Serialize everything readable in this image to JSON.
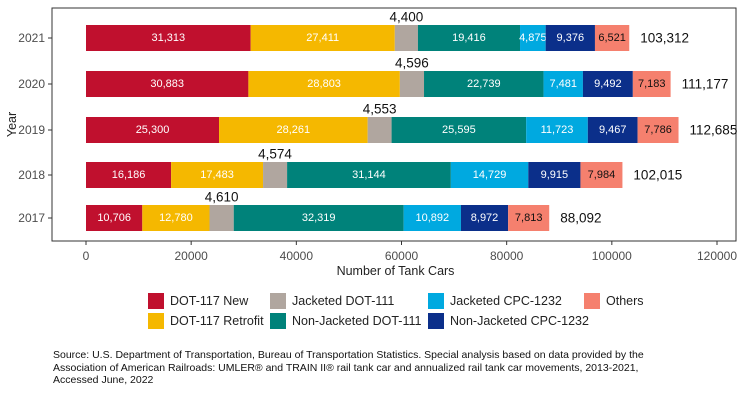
{
  "chart_data": {
    "type": "bar",
    "orientation": "horizontal",
    "stacked": true,
    "xlabel": "Number of Tank Cars",
    "ylabel": "Year",
    "xlim": [
      0,
      120000
    ],
    "x_ticks": [
      "0",
      "20000",
      "40000",
      "60000",
      "80000",
      "100000",
      "120000"
    ],
    "grid": false,
    "legend_position": "bottom",
    "categories": [
      "2021",
      "2020",
      "2019",
      "2018",
      "2017"
    ],
    "series": [
      {
        "name": "DOT-117 New",
        "color": "#c0102e",
        "values": [
          31313,
          30883,
          25300,
          16186,
          10706
        ],
        "labels": [
          "31,313",
          "30,883",
          "25,300",
          "16,186",
          "10,706"
        ]
      },
      {
        "name": "DOT-117 Retrofit",
        "color": "#f5b800",
        "values": [
          27411,
          28803,
          28261,
          17483,
          12780
        ],
        "labels": [
          "27,411",
          "28,803",
          "28,261",
          "17,483",
          "12,780"
        ]
      },
      {
        "name": "Jacketed DOT-111",
        "color": "#b0a69f",
        "values": [
          4400,
          4596,
          4553,
          4574,
          4610
        ],
        "labels": [
          "4,400",
          "4,596",
          "4,553",
          "4,574",
          "4,610"
        ]
      },
      {
        "name": "Non-Jacketed DOT-111",
        "color": "#00827a",
        "values": [
          19416,
          22739,
          25595,
          31144,
          32319
        ],
        "labels": [
          "19,416",
          "22,739",
          "25,595",
          "31,144",
          "32,319"
        ]
      },
      {
        "name": "Jacketed CPC-1232",
        "color": "#00a9e0",
        "values": [
          4875,
          7481,
          11723,
          14729,
          10892
        ],
        "labels": [
          "4,875",
          "7,481",
          "11,723",
          "14,729",
          "10,892"
        ]
      },
      {
        "name": "Non-Jacketed CPC-1232",
        "color": "#0b2f8a",
        "values": [
          9376,
          9492,
          9467,
          9915,
          8972
        ],
        "labels": [
          "9,376",
          "9,492",
          "9,467",
          "9,915",
          "8,972"
        ]
      },
      {
        "name": "Others",
        "color": "#f5806e",
        "values": [
          6521,
          7183,
          7786,
          7984,
          7813
        ],
        "labels": [
          "6,521",
          "7,183",
          "7,786",
          "7,984",
          "7,813"
        ]
      }
    ],
    "totals": [
      "103,312",
      "111,177",
      "112,685",
      "102,015",
      "88,092"
    ]
  },
  "legend": [
    "DOT-117 New",
    "Jacketed DOT-111",
    "Jacketed CPC-1232",
    "Others",
    "DOT-117 Retrofit",
    "Non-Jacketed DOT-111",
    "Non-Jacketed CPC-1232"
  ],
  "source": "Source: U.S. Department of Transportation, Bureau of Transportation Statistics. Special analysis based on data provided by the Association of American Railroads: UMLER® and TRAIN II® rail tank car and annualized rail tank car movements, 2013-2021, Accessed June, 2022"
}
